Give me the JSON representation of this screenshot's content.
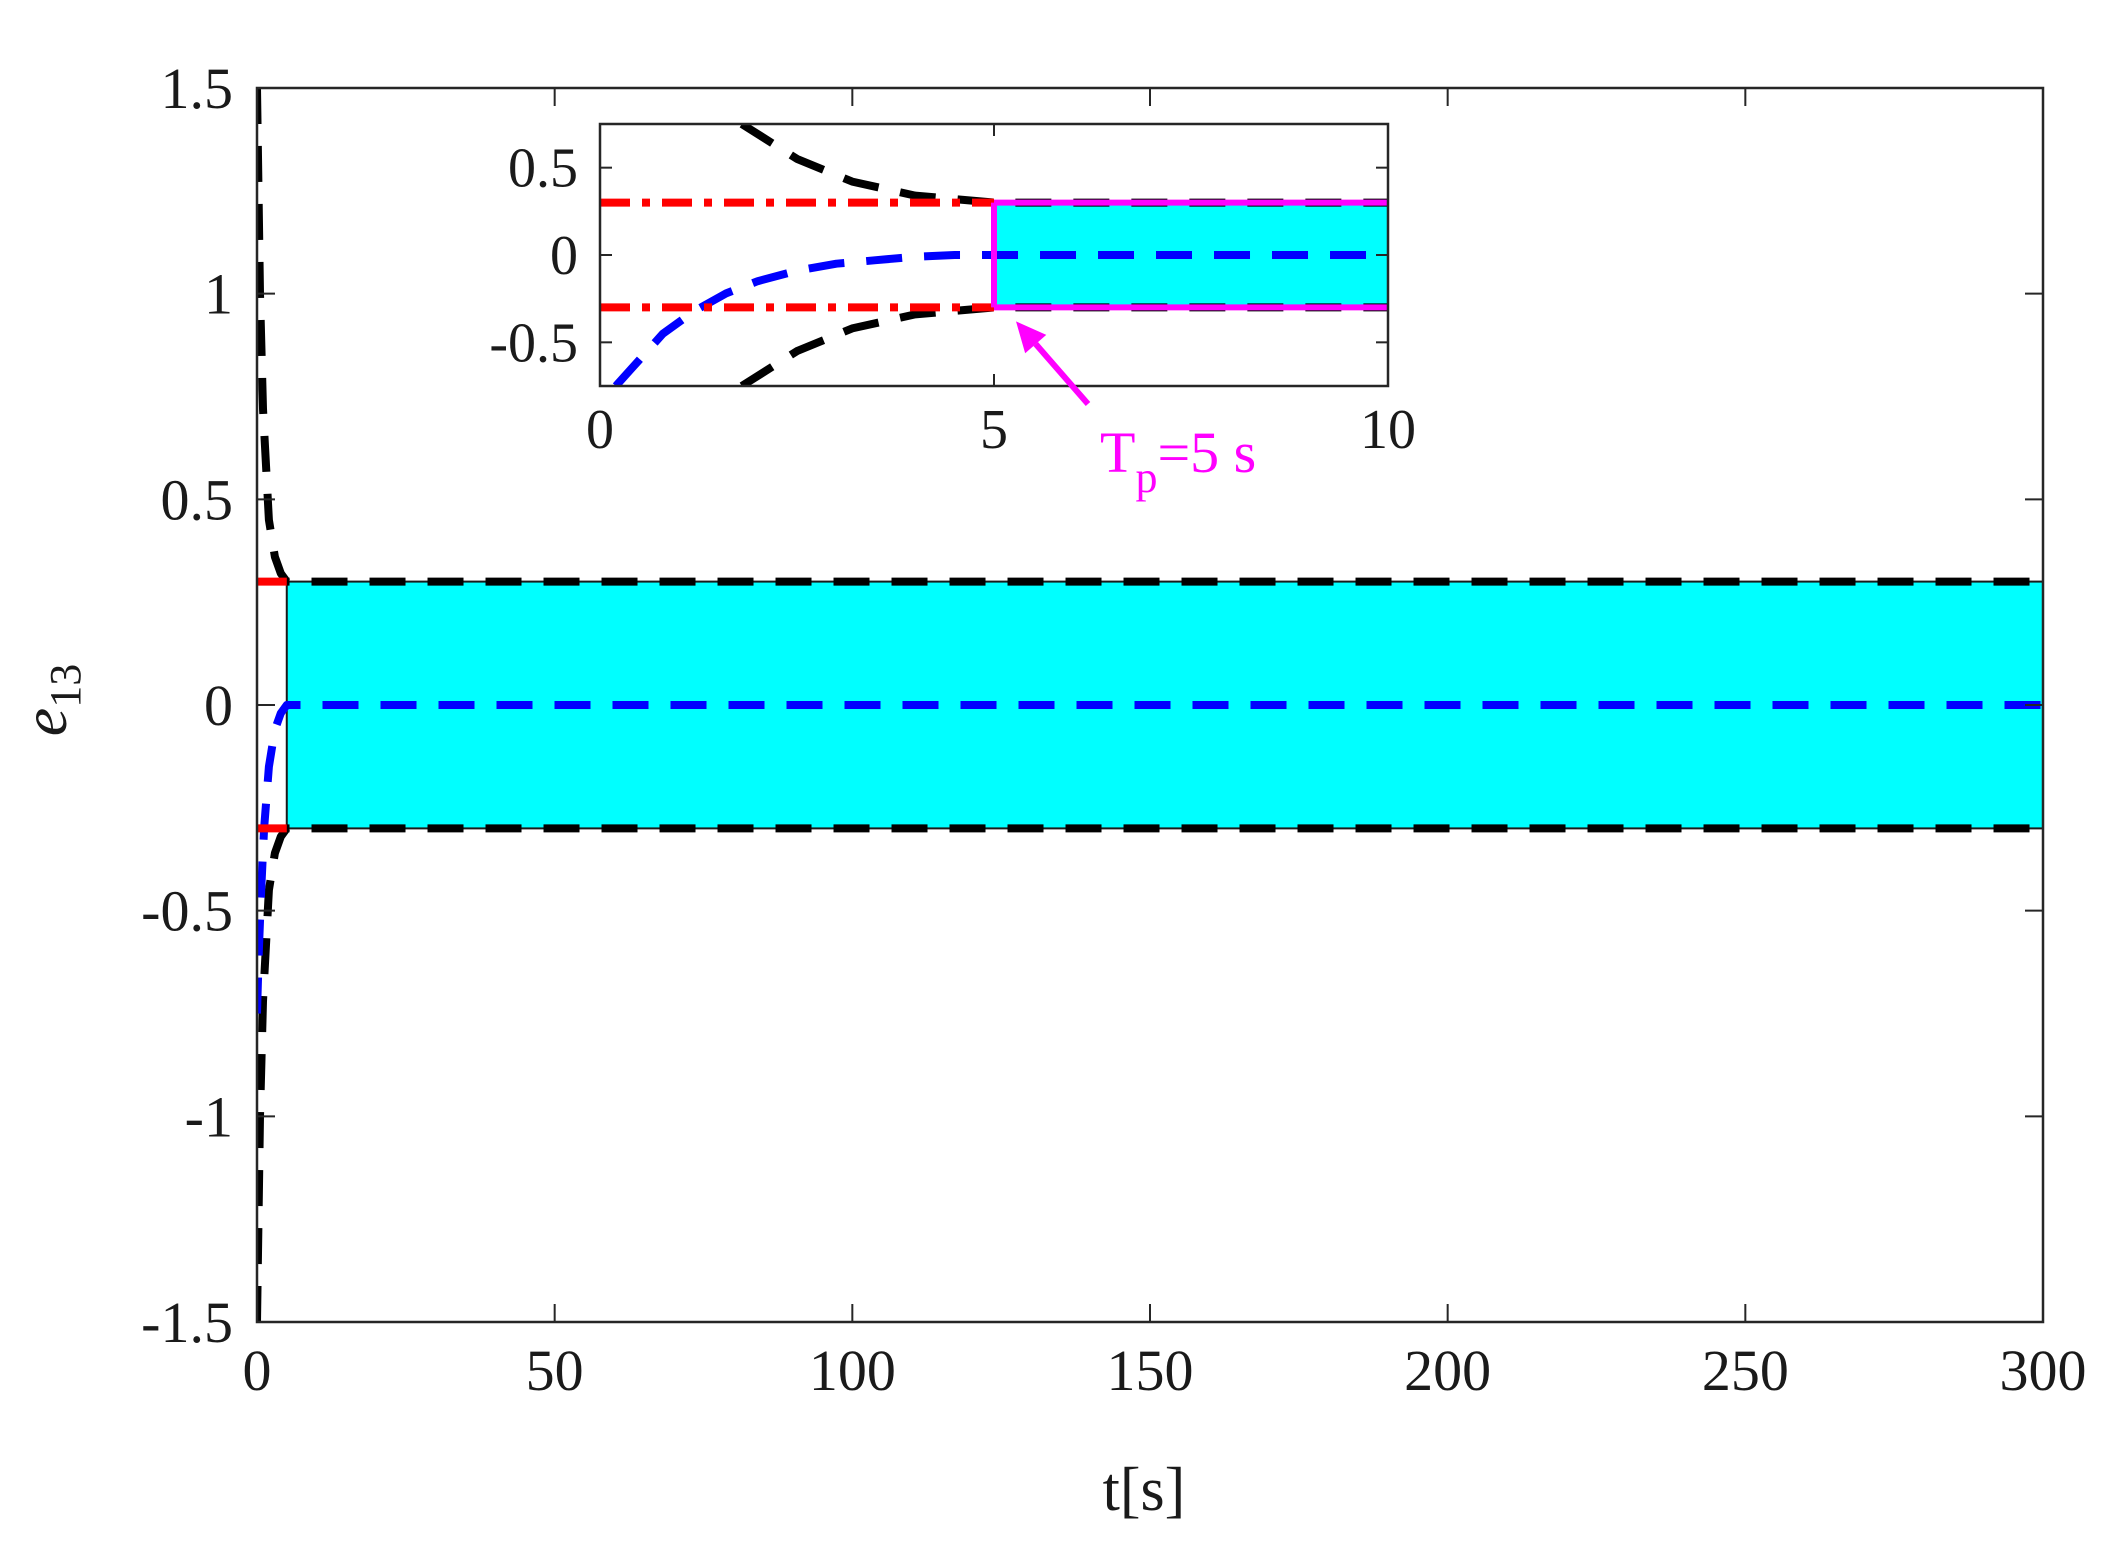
{
  "chart_data": [
    {
      "type": "line",
      "xlabel": "t[s]",
      "ylabel": "e13",
      "ylabel_base": "e",
      "ylabel_sub": "13",
      "xlim": [
        0,
        300
      ],
      "ylim": [
        -1.5,
        1.5
      ],
      "xticks": [
        0,
        50,
        100,
        150,
        200,
        250,
        300
      ],
      "yticks": [
        -1.5,
        -1,
        -0.5,
        0,
        0.5,
        1,
        1.5
      ],
      "xtick_labels": [
        "0",
        "50",
        "100",
        "150",
        "200",
        "250",
        "300"
      ],
      "ytick_labels": [
        "-1.5",
        "-1",
        "-0.5",
        "0",
        "0.5",
        "1",
        "1.5"
      ],
      "grid": false,
      "prescribed_time": 5,
      "bound": 0.3,
      "shaded_region": {
        "x": [
          5,
          300
        ],
        "y": [
          -0.3,
          0.3
        ],
        "color": "#00ffff"
      },
      "series": [
        {
          "style": "dashed",
          "color": "#000000",
          "x": [
            0,
            0.5,
            1,
            2,
            3,
            4,
            5,
            300
          ],
          "y": [
            1.5,
            1.0,
            0.72,
            0.45,
            0.36,
            0.32,
            0.3,
            0.3
          ]
        },
        {
          "style": "dashed",
          "color": "#000000",
          "x": [
            0,
            0.5,
            1,
            2,
            3,
            4,
            5,
            300
          ],
          "y": [
            -1.5,
            -1.0,
            -0.72,
            -0.45,
            -0.36,
            -0.32,
            -0.3,
            -0.3
          ]
        },
        {
          "style": "dashed",
          "color": "#0000ff",
          "x": [
            0,
            0.3,
            0.7,
            1.2,
            2,
            3,
            4,
            5,
            300
          ],
          "y": [
            -0.75,
            -0.6,
            -0.45,
            -0.3,
            -0.15,
            -0.06,
            -0.02,
            0,
            0
          ]
        },
        {
          "style": "dashdot",
          "color": "#ff0000",
          "x": [
            0,
            5
          ],
          "y": [
            0.3,
            0.3
          ]
        },
        {
          "style": "dashdot",
          "color": "#ff0000",
          "x": [
            0,
            5
          ],
          "y": [
            -0.3,
            -0.3
          ]
        }
      ]
    },
    {
      "type": "line",
      "xlim": [
        0,
        10
      ],
      "ylim": [
        -0.75,
        0.75
      ],
      "xticks": [
        0,
        5,
        10
      ],
      "yticks": [
        -0.5,
        0,
        0.5
      ],
      "xtick_labels": [
        "0",
        "5",
        "10"
      ],
      "ytick_labels": [
        "-0.5",
        "0",
        "0.5"
      ],
      "grid": false,
      "shaded_region": {
        "x": [
          5,
          10
        ],
        "y": [
          -0.3,
          0.3
        ],
        "color": "#00ffff"
      },
      "annotation": {
        "text": "T",
        "sub": "p",
        "suffix": "=5 s",
        "color": "#ff00ff",
        "points_to": [
          5,
          -0.3
        ]
      },
      "series": [
        {
          "style": "dashed",
          "color": "#000000",
          "x": [
            1.8,
            2.5,
            3.2,
            4,
            5,
            10
          ],
          "y": [
            0.75,
            0.55,
            0.42,
            0.34,
            0.3,
            0.3
          ]
        },
        {
          "style": "dashed",
          "color": "#000000",
          "x": [
            1.8,
            2.5,
            3.2,
            4,
            5,
            10
          ],
          "y": [
            -0.75,
            -0.55,
            -0.42,
            -0.34,
            -0.3,
            -0.3
          ]
        },
        {
          "style": "dashed",
          "color": "#0000ff",
          "x": [
            0.2,
            0.5,
            0.8,
            1.2,
            1.6,
            2,
            2.5,
            3,
            3.5,
            4,
            4.5,
            5,
            10
          ],
          "y": [
            -0.75,
            -0.6,
            -0.45,
            -0.32,
            -0.22,
            -0.15,
            -0.09,
            -0.05,
            -0.03,
            -0.01,
            0,
            0,
            0
          ]
        },
        {
          "style": "dashdot",
          "color": "#ff0000",
          "x": [
            0,
            5
          ],
          "y": [
            0.3,
            0.3
          ]
        },
        {
          "style": "dashdot",
          "color": "#ff0000",
          "x": [
            0,
            5
          ],
          "y": [
            -0.3,
            -0.3
          ]
        },
        {
          "style": "solid",
          "color": "#ff00ff",
          "x": [
            5,
            10
          ],
          "y": [
            0.3,
            0.3
          ]
        },
        {
          "style": "solid",
          "color": "#ff00ff",
          "x": [
            5,
            10
          ],
          "y": [
            -0.3,
            -0.3
          ]
        },
        {
          "style": "solid",
          "color": "#ff00ff",
          "x": [
            5,
            5
          ],
          "y": [
            -0.3,
            0.3
          ]
        }
      ]
    }
  ]
}
